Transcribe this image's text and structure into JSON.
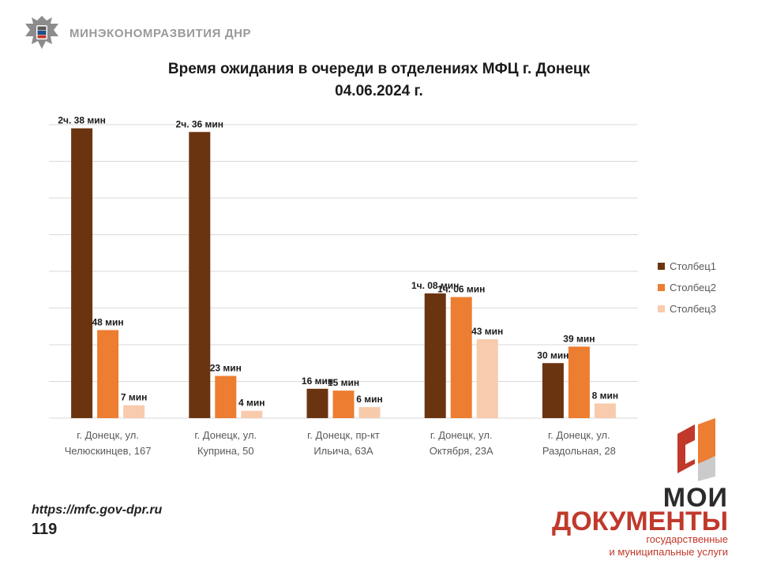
{
  "header": {
    "ministry": "МИНЭКОНОМРАЗВИТИЯ ДНР",
    "emblem_icon": "coat-of-arms-icon"
  },
  "footer": {
    "url": "https://mfc.gov-dpr.ru",
    "page": "119"
  },
  "brand": {
    "logo_icon": "moi-dokumenty-logo-icon",
    "line1": "МОИ",
    "line2": "ДОКУМЕНТЫ",
    "line3": "государственные",
    "line4": "и муниципальные услуги"
  },
  "colors": {
    "series1": "#6b3410",
    "series2": "#ed7d31",
    "series3": "#f8cbad",
    "grid": "#d9d9d9",
    "brand_red": "#c0392b"
  },
  "chart_data": {
    "type": "bar",
    "title_lines": [
      "Время ожидания в очереди в отделениях МФЦ г. Донецк",
      "04.06.2024 г."
    ],
    "categories": [
      [
        "г. Донецк, ул.",
        "Челюскинцев, 167"
      ],
      [
        "г. Донецк, ул.",
        "Куприна, 50"
      ],
      [
        "г. Донецк, пр-кт",
        "Ильича, 63А"
      ],
      [
        "г. Донецк, ул.",
        "Октября, 23А"
      ],
      [
        "г. Донецк, ул.",
        "Раздольная, 28"
      ]
    ],
    "series": [
      {
        "name": "Столбец1",
        "values": [
          158,
          156,
          16,
          68,
          30
        ],
        "labels": [
          "2ч. 38 мин",
          "2ч. 36 мин",
          "16 мин",
          "1ч. 08 мин",
          "30 мин"
        ]
      },
      {
        "name": "Столбец2",
        "values": [
          48,
          23,
          15,
          66,
          39
        ],
        "labels": [
          "48 мин",
          "23 мин",
          "15 мин",
          "1ч. 06 мин",
          "39 мин"
        ]
      },
      {
        "name": "Столбец3",
        "values": [
          7,
          4,
          6,
          43,
          8
        ],
        "labels": [
          "7 мин",
          "4 мин",
          "6 мин",
          "43 мин",
          "8 мин"
        ]
      }
    ],
    "grid": true,
    "legend": "right"
  }
}
